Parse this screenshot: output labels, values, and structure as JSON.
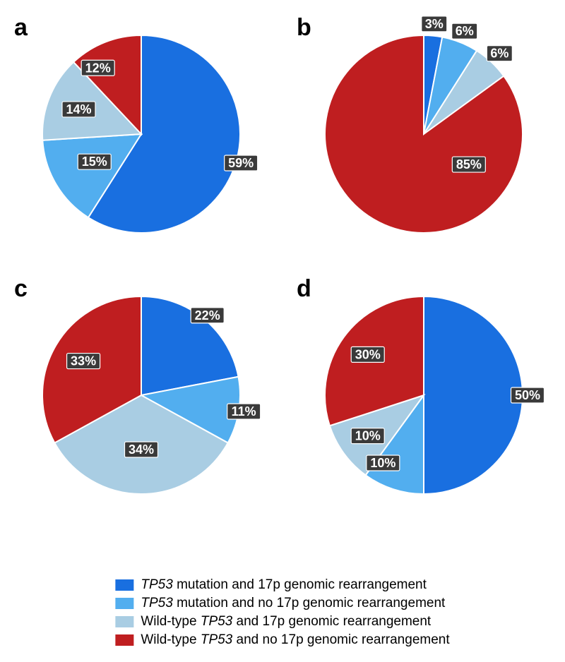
{
  "colors": {
    "c1": "#196fe0",
    "c2": "#52aeef",
    "c3": "#a9cde3",
    "c4": "#bf1e20"
  },
  "pie_styling": {
    "radius": 140,
    "start_angle_deg": 0,
    "direction": "clockwise",
    "stroke": "#ffffff",
    "stroke_width": 2,
    "label_bg": "#3a3a3a",
    "label_text_color": "#ffffff",
    "label_border": "#ffffff",
    "label_fontsize": 18,
    "panel_letter_fontsize": 34,
    "legend_fontsize": 19
  },
  "legend": [
    {
      "color_key": "c1",
      "italic": "TP53",
      "rest": " mutation and 17p genomic rearrangement"
    },
    {
      "color_key": "c2",
      "italic": "TP53",
      "rest": " mutation and no 17p genomic rearrangement"
    },
    {
      "color_key": "c3",
      "prefix": "Wild-type ",
      "italic": "TP53",
      "rest": " and 17p genomic rearrangement"
    },
    {
      "color_key": "c4",
      "prefix": "Wild-type ",
      "italic": "TP53",
      "rest": " and no 17p genomic rearrangement"
    }
  ],
  "panels": {
    "a": {
      "letter": "a",
      "slices": [
        {
          "value": 59,
          "color_key": "c1",
          "label": "59%",
          "label_r": 1.05,
          "label_at": "mid"
        },
        {
          "value": 15,
          "color_key": "c2",
          "label": "15%",
          "label_r": 0.55,
          "label_at": "mid"
        },
        {
          "value": 14,
          "color_key": "c3",
          "label": "14%",
          "label_r": 0.68,
          "label_at": "mid"
        },
        {
          "value": 12,
          "color_key": "c4",
          "label": "12%",
          "label_r": 0.8,
          "label_at": "start",
          "label_offset_deg": 10
        }
      ]
    },
    "b": {
      "letter": "b",
      "slices": [
        {
          "value": 3,
          "color_key": "c1",
          "label": "3%",
          "label_r": 1.12,
          "label_at": "mid"
        },
        {
          "value": 6,
          "color_key": "c2",
          "label": "6%",
          "label_r": 1.12,
          "label_at": "mid"
        },
        {
          "value": 6,
          "color_key": "c3",
          "label": "6%",
          "label_r": 1.12,
          "label_at": "mid"
        },
        {
          "value": 85,
          "color_key": "c4",
          "label": "85%",
          "label_r": 0.55,
          "label_at": "start",
          "label_offset_deg": 70
        }
      ]
    },
    "c": {
      "letter": "c",
      "slices": [
        {
          "value": 22,
          "color_key": "c1",
          "label": "22%",
          "label_r": 1.05,
          "label_at": "mid"
        },
        {
          "value": 11,
          "color_key": "c2",
          "label": "11%",
          "label_r": 1.05,
          "label_at": "mid"
        },
        {
          "value": 34,
          "color_key": "c3",
          "label": "34%",
          "label_r": 0.55,
          "label_at": "mid"
        },
        {
          "value": 33,
          "color_key": "c4",
          "label": "33%",
          "label_r": 0.68,
          "label_at": "mid"
        }
      ]
    },
    "d": {
      "letter": "d",
      "slices": [
        {
          "value": 50,
          "color_key": "c1",
          "label": "50%",
          "label_r": 1.05,
          "label_at": "mid"
        },
        {
          "value": 10,
          "color_key": "c2",
          "label": "10%",
          "label_r": 0.8,
          "label_at": "end",
          "label_offset_deg": -5
        },
        {
          "value": 10,
          "color_key": "c3",
          "label": "10%",
          "label_r": 0.7,
          "label_at": "mid"
        },
        {
          "value": 30,
          "color_key": "c4",
          "label": "30%",
          "label_r": 0.7,
          "label_at": "mid"
        }
      ]
    }
  }
}
